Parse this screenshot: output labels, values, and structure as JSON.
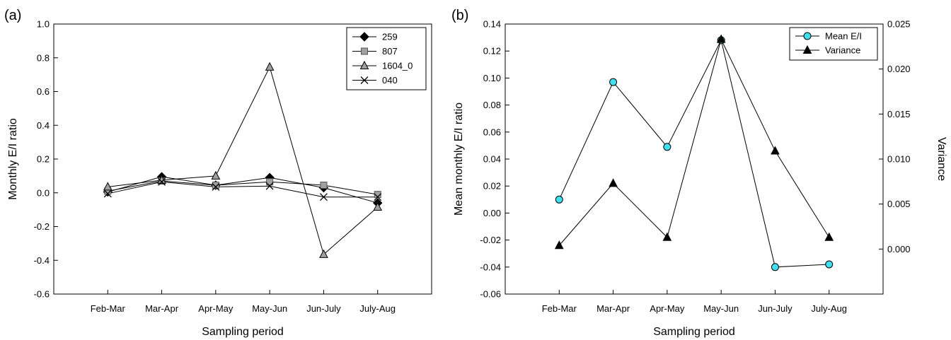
{
  "chart_data": [
    {
      "panel": "(a)",
      "type": "line",
      "categories": [
        "Feb-Mar",
        "Mar-Apr",
        "Apr-May",
        "May-Jun",
        "Jun-July",
        "July-Aug"
      ],
      "xlabel": "Sampling period",
      "ylabel": "Monthly E/I ratio",
      "ylim": [
        -0.6,
        1.0
      ],
      "yticks": [
        "-0.6",
        "-0.4",
        "-0.2",
        "0.0",
        "0.2",
        "0.4",
        "0.6",
        "0.8",
        "1.0"
      ],
      "legend_position": "top-right",
      "series": [
        {
          "name": "259",
          "marker": "diamond",
          "color": "#000000",
          "values": [
            0.005,
            0.095,
            0.045,
            0.09,
            0.03,
            -0.06
          ]
        },
        {
          "name": "807",
          "marker": "square",
          "color": "#a0a0a0",
          "values": [
            0.01,
            0.07,
            0.045,
            0.065,
            0.045,
            -0.01
          ]
        },
        {
          "name": "1604_0",
          "marker": "triangle",
          "color": "#a0a0a0",
          "values": [
            0.035,
            0.075,
            0.1,
            0.745,
            -0.365,
            -0.085
          ]
        },
        {
          "name": "040",
          "marker": "x",
          "color": "#000000",
          "values": [
            -0.005,
            0.065,
            0.035,
            0.04,
            -0.025,
            -0.025
          ]
        }
      ]
    },
    {
      "panel": "(b)",
      "type": "line",
      "categories": [
        "Feb-Mar",
        "Mar-Apr",
        "Apr-May",
        "May-Jun",
        "Jun-July",
        "July-Aug"
      ],
      "xlabel": "Sampling period",
      "ylabel": "Mean monthly E/I ratio",
      "ylabel_right": "Variance",
      "ylim": [
        -0.06,
        0.14
      ],
      "yticks": [
        "-0.06",
        "-0.04",
        "-0.02",
        "0.00",
        "0.02",
        "0.04",
        "0.06",
        "0.08",
        "0.10",
        "0.12",
        "0.14"
      ],
      "ylim_right": [
        -0.005,
        0.025
      ],
      "yticks_right": [
        "0.000",
        "0.005",
        "0.010",
        "0.015",
        "0.020",
        "0.025"
      ],
      "legend_position": "top-right",
      "series": [
        {
          "name": "Mean E/I",
          "marker": "circle",
          "color": "#40e0f0",
          "axis": "left",
          "values": [
            0.01,
            0.097,
            0.049,
            0.128,
            -0.04,
            -0.038
          ]
        },
        {
          "name": "Variance",
          "marker": "triangle",
          "color": "#000000",
          "axis": "right",
          "values": [
            0.0004,
            0.0073,
            0.0013,
            0.0233,
            0.0109,
            0.0013
          ]
        }
      ]
    }
  ]
}
